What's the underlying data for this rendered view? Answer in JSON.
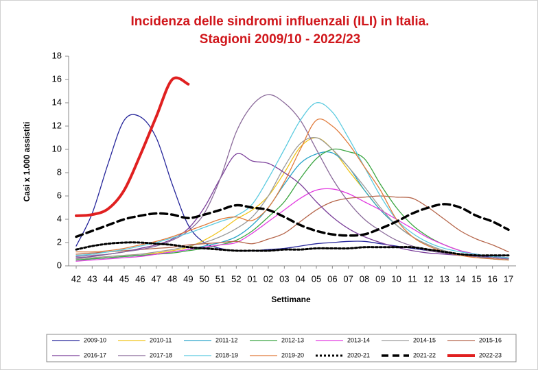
{
  "chart_data": {
    "type": "line",
    "title": [
      "Incidenza delle sindromi influenzali (ILI) in Italia.",
      "Stagioni 2009/10 - 2022/23"
    ],
    "x_label": "Settimane",
    "y_label": "Casi x 1.000 assistiti",
    "categories": [
      "42",
      "43",
      "44",
      "45",
      "46",
      "47",
      "48",
      "49",
      "50",
      "51",
      "52",
      "01",
      "02",
      "03",
      "04",
      "05",
      "06",
      "07",
      "08",
      "09",
      "10",
      "11",
      "12",
      "13",
      "14",
      "15",
      "16",
      "17"
    ],
    "ylim": [
      0,
      18
    ],
    "yticks": [
      0,
      2,
      4,
      6,
      8,
      10,
      12,
      14,
      16,
      18
    ],
    "grid": false,
    "legend": "bottom",
    "series": [
      {
        "name": "2009-10",
        "color": "#25259a",
        "values": [
          1.7,
          4.5,
          8.8,
          12.5,
          12.8,
          11,
          7,
          3.5,
          2,
          1.5,
          1.3,
          1.3,
          1.4,
          1.5,
          1.7,
          1.9,
          2.0,
          2.1,
          2.1,
          1.9,
          1.7,
          1.5,
          1.3,
          1.1,
          0.9,
          0.8,
          0.8,
          0.7
        ]
      },
      {
        "name": "2010-11",
        "color": "#f0c419",
        "values": [
          0.6,
          0.7,
          0.8,
          0.9,
          1.0,
          1.1,
          1.3,
          1.6,
          2.2,
          3.0,
          4.0,
          4.8,
          6.0,
          8.0,
          10.2,
          11.0,
          10,
          8.2,
          6.5,
          4.8,
          3.5,
          2.5,
          1.8,
          1.3,
          1.0,
          0.8,
          0.6,
          0.5
        ]
      },
      {
        "name": "2011-12",
        "color": "#2aa5c9",
        "values": [
          0.5,
          0.6,
          0.7,
          0.8,
          0.9,
          1.0,
          1.2,
          1.4,
          1.7,
          2.0,
          2.5,
          3.5,
          5.0,
          7.0,
          8.8,
          9.6,
          9.7,
          8.5,
          6.5,
          4.8,
          3.5,
          2.5,
          1.8,
          1.3,
          1.0,
          0.8,
          0.6,
          0.5
        ]
      },
      {
        "name": "2012-13",
        "color": "#3aa540",
        "values": [
          0.5,
          0.6,
          0.7,
          0.8,
          0.9,
          1.0,
          1.1,
          1.3,
          1.5,
          1.8,
          2.2,
          3.0,
          4.2,
          5.5,
          7.5,
          9.2,
          10.0,
          9.8,
          9.2,
          7.0,
          5.0,
          3.5,
          2.5,
          1.8,
          1.3,
          1.0,
          0.8,
          0.6
        ]
      },
      {
        "name": "2013-14",
        "color": "#e23be0",
        "values": [
          0.4,
          0.5,
          0.6,
          0.7,
          0.8,
          1.0,
          1.2,
          1.4,
          1.6,
          1.8,
          2.0,
          2.8,
          3.8,
          4.8,
          5.8,
          6.5,
          6.6,
          6.2,
          5.5,
          4.8,
          4.0,
          3.2,
          2.4,
          1.8,
          1.3,
          1.0,
          0.8,
          0.6
        ]
      },
      {
        "name": "2014-15",
        "color": "#9a9a9a",
        "values": [
          0.6,
          0.7,
          0.8,
          0.9,
          1.0,
          1.2,
          1.4,
          1.7,
          2.0,
          2.5,
          3.2,
          4.2,
          6.0,
          8.5,
          10.5,
          11.0,
          10.0,
          8.5,
          6.8,
          5.0,
          3.5,
          2.5,
          1.8,
          1.3,
          1.0,
          0.8,
          0.7,
          0.6
        ]
      },
      {
        "name": "2015-16",
        "color": "#b5654a",
        "values": [
          1.0,
          1.1,
          1.2,
          1.3,
          1.4,
          1.5,
          1.6,
          1.8,
          1.9,
          2.0,
          2.1,
          1.9,
          2.3,
          2.8,
          3.8,
          4.8,
          5.5,
          5.8,
          5.9,
          6.0,
          5.9,
          5.8,
          5.0,
          4.0,
          3.0,
          2.3,
          1.8,
          1.2
        ]
      },
      {
        "name": "2016-17",
        "color": "#7b3f9a",
        "values": [
          0.7,
          0.8,
          1.0,
          1.2,
          1.5,
          1.8,
          2.3,
          3.2,
          5.0,
          7.5,
          9.6,
          9.0,
          8.8,
          8.0,
          7.0,
          5.5,
          4.2,
          3.2,
          2.5,
          2.0,
          1.6,
          1.3,
          1.1,
          1.0,
          0.9,
          0.8,
          0.7,
          0.6
        ]
      },
      {
        "name": "2017-18",
        "color": "#8a6a9a",
        "values": [
          0.8,
          0.9,
          1.0,
          1.2,
          1.4,
          1.7,
          2.2,
          3.0,
          4.5,
          7.5,
          11.5,
          13.8,
          14.7,
          14.0,
          12.5,
          10.0,
          7.5,
          5.5,
          4.0,
          3.0,
          2.2,
          1.7,
          1.3,
          1.1,
          0.9,
          0.8,
          0.7,
          0.6
        ]
      },
      {
        "name": "2018-19",
        "color": "#5ccbe0",
        "values": [
          0.9,
          1.0,
          1.2,
          1.4,
          1.7,
          2.0,
          2.4,
          2.8,
          3.3,
          3.8,
          4.3,
          5.3,
          7.5,
          10.0,
          12.5,
          14.0,
          13.2,
          11.0,
          8.5,
          6.0,
          4.0,
          2.8,
          2.0,
          1.5,
          1.2,
          1.0,
          0.8,
          0.7
        ]
      },
      {
        "name": "2019-20",
        "color": "#e07a3a",
        "values": [
          1.2,
          1.2,
          1.3,
          1.5,
          1.8,
          2.1,
          2.5,
          3.0,
          3.5,
          4.0,
          4.2,
          3.9,
          5.0,
          7.2,
          10.0,
          12.5,
          12.0,
          10.5,
          8.5,
          6.5,
          4.0,
          2.5,
          1.7,
          1.2,
          0.9,
          0.7,
          0.6,
          0.5
        ]
      },
      {
        "name": "2020-21",
        "color": "#000000",
        "style": "dotted",
        "values": [
          1.4,
          1.7,
          1.9,
          2.0,
          2.0,
          1.9,
          1.8,
          1.6,
          1.5,
          1.4,
          1.3,
          1.3,
          1.3,
          1.4,
          1.4,
          1.5,
          1.5,
          1.5,
          1.6,
          1.6,
          1.6,
          1.6,
          1.4,
          1.2,
          1.0,
          0.9,
          0.9,
          0.9
        ]
      },
      {
        "name": "2021-22",
        "color": "#000000",
        "style": "dashed",
        "values": [
          2.5,
          3.0,
          3.5,
          4.0,
          4.3,
          4.5,
          4.4,
          4.1,
          4.4,
          4.8,
          5.2,
          5.0,
          4.8,
          4.2,
          3.5,
          3.0,
          2.7,
          2.6,
          2.7,
          3.2,
          3.8,
          4.5,
          5.0,
          5.3,
          5.0,
          4.3,
          3.8,
          3.1
        ]
      },
      {
        "name": "2022-23",
        "color": "#e02020",
        "style": "thick",
        "values": [
          4.3,
          4.4,
          4.9,
          6.5,
          9.5,
          12.8,
          16.0,
          15.6,
          null,
          null,
          null,
          null,
          null,
          null,
          null,
          null,
          null,
          null,
          null,
          null,
          null,
          null,
          null,
          null,
          null,
          null,
          null,
          null
        ]
      }
    ]
  }
}
